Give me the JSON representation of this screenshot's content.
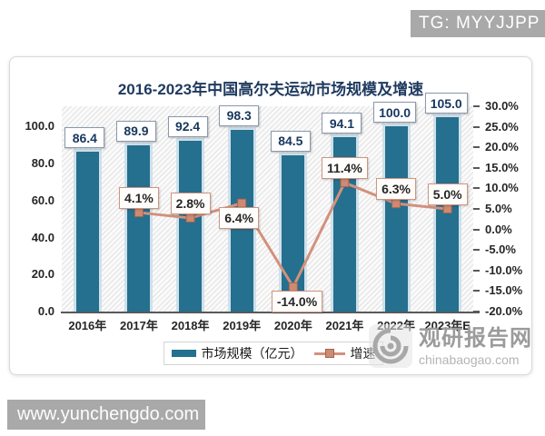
{
  "overlays": {
    "tg_badge": "TG: MYYJJPP",
    "site_badge": "www.yunchengdo.com",
    "watermark": {
      "brand": "观研报告网",
      "domain": "chinabaogao.com"
    }
  },
  "chart_data": {
    "type": "bar+line",
    "title": "2016-2023年中国高尔夫运动市场规模及增速",
    "categories": [
      "2016年",
      "2017年",
      "2018年",
      "2019年",
      "2020年",
      "2021年",
      "2022年",
      "2023年E"
    ],
    "series": [
      {
        "name": "市场规模（亿元）",
        "type": "bar",
        "axis": "left",
        "values": [
          86.4,
          89.9,
          92.4,
          98.3,
          84.5,
          94.1,
          100.0,
          105.0
        ]
      },
      {
        "name": "增速",
        "type": "line",
        "axis": "right",
        "values": [
          null,
          4.1,
          2.8,
          6.4,
          -14.0,
          11.4,
          6.3,
          5.0
        ]
      }
    ],
    "left_axis": {
      "ticks": [
        "100.0",
        "80.0",
        "60.0",
        "40.0",
        "20.0",
        "0.0"
      ],
      "min": 0,
      "max": 111
    },
    "right_axis": {
      "ticks": [
        "30.0%",
        "25.0%",
        "20.0%",
        "15.0%",
        "10.0%",
        "5.0%",
        "0.0%",
        "-5.0%",
        "-10.0%",
        "-15.0%",
        "-20.0%"
      ],
      "min": -20,
      "max": 30
    },
    "legend": [
      "市场规模（亿元）",
      "增速"
    ],
    "legend_position": "bottom",
    "grid": false,
    "plot_background": "diagonal-hatch",
    "colors": {
      "bar": "#256f8f",
      "bar_halo": "#cfe1ea",
      "line": "#d3917c",
      "marker": "#ce8a72",
      "title": "#1e3a5e",
      "badge_bg": "#a9a9a9",
      "watermark": "#9b9b9b"
    }
  }
}
